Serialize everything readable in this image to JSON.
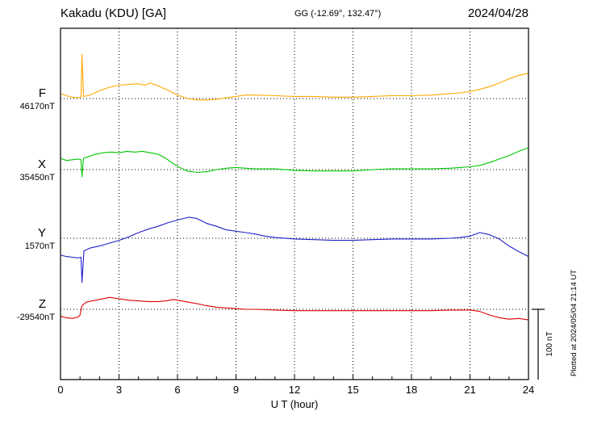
{
  "header": {
    "station": "Kakadu (KDU)  [GA]",
    "coords": "GG (-12.69°, 132.47°)",
    "date": "2024/04/28"
  },
  "footer": {
    "xlabel": "U T (hour)"
  },
  "side": {
    "scale_label": "100 nT",
    "plotted_at": "Plotted at 2024/05/04 21:14 UT"
  },
  "chart_data": {
    "type": "line",
    "title": "Kakadu (KDU) [GA] magnetogram 2024/04/28",
    "xlabel": "U T (hour)",
    "xlim": [
      0,
      24
    ],
    "xticks": [
      0,
      3,
      6,
      9,
      12,
      15,
      18,
      21,
      24
    ],
    "grid": "dotted horizontal baselines per component, dotted vertical lines every 3 hours",
    "scale_nT": 100,
    "series": [
      {
        "name": "F",
        "label": "F",
        "base_label": "46170nT",
        "baseline_nT": 46170,
        "color": "#FFA800",
        "x": [
          0,
          0.3,
          0.6,
          0.9,
          1.05,
          1.1,
          1.18,
          1.4,
          1.7,
          2,
          2.5,
          3,
          3.5,
          4,
          4.3,
          4.6,
          5,
          5.5,
          6,
          6.5,
          7,
          7.5,
          8,
          8.5,
          9,
          9.5,
          10,
          11,
          12,
          13,
          14,
          15,
          16,
          17,
          18,
          19,
          20,
          20.5,
          21,
          21.5,
          22,
          22.5,
          23,
          23.5,
          24
        ],
        "offsets_nT": [
          7,
          4,
          2,
          1,
          2,
          63,
          3,
          4,
          7,
          11,
          16,
          19,
          20,
          21,
          19,
          22,
          18,
          12,
          5,
          0,
          -2,
          -2,
          -1,
          1,
          3,
          5,
          5,
          4,
          3,
          3,
          2,
          2,
          3,
          4,
          4,
          5,
          7,
          8,
          10,
          13,
          17,
          22,
          28,
          33,
          36
        ]
      },
      {
        "name": "X",
        "label": "X",
        "base_label": "35450nT",
        "baseline_nT": 35450,
        "color": "#00C800",
        "x": [
          0,
          0.3,
          0.6,
          0.9,
          1.05,
          1.1,
          1.18,
          1.4,
          1.8,
          2.2,
          2.6,
          3,
          3.4,
          3.8,
          4.2,
          4.6,
          5,
          5.4,
          5.8,
          6.2,
          6.5,
          7,
          7.5,
          8,
          8.5,
          9,
          9.5,
          10,
          11,
          12,
          13,
          14,
          15,
          16,
          17,
          18,
          19,
          20,
          20.5,
          21,
          21.5,
          22,
          22.5,
          23,
          23.5,
          24
        ],
        "offsets_nT": [
          16,
          13,
          14,
          15,
          14,
          -10,
          16,
          18,
          22,
          24,
          25,
          24,
          26,
          25,
          26,
          24,
          22,
          16,
          8,
          2,
          -2,
          -4,
          -3,
          0,
          2,
          3,
          2,
          1,
          1,
          -1,
          -2,
          -2,
          -2,
          0,
          1,
          1,
          1,
          2,
          3,
          4,
          6,
          10,
          15,
          20,
          26,
          31
        ]
      },
      {
        "name": "Y",
        "label": "Y",
        "base_label": "1570nT",
        "baseline_nT": 1570,
        "color": "#2020C8",
        "x": [
          0,
          0.3,
          0.6,
          0.9,
          1.05,
          1.1,
          1.2,
          1.5,
          2,
          2.5,
          3,
          3.5,
          4,
          4.5,
          5,
          5.5,
          6,
          6.3,
          6.6,
          7,
          7.5,
          8,
          8.5,
          9,
          9.5,
          10,
          10.5,
          11,
          12,
          13,
          14,
          15,
          16,
          17,
          18,
          19,
          20,
          20.5,
          21,
          21.5,
          22,
          22.5,
          23,
          23.5,
          24
        ],
        "offsets_nT": [
          -24,
          -26,
          -27,
          -28,
          -27,
          -63,
          -18,
          -14,
          -11,
          -7,
          -3,
          2,
          8,
          13,
          17,
          22,
          26,
          28,
          30,
          28,
          21,
          17,
          12,
          10,
          8,
          6,
          3,
          1,
          -1,
          -2,
          -3,
          -3,
          -2,
          -1,
          -1,
          -1,
          0,
          1,
          3,
          8,
          5,
          -1,
          -11,
          -19,
          -26
        ]
      },
      {
        "name": "Z",
        "label": "Z",
        "base_label": "-29540nT",
        "baseline_nT": -29540,
        "color": "#E00000",
        "x": [
          0,
          0.3,
          0.6,
          0.9,
          1.0,
          1.1,
          1.3,
          1.6,
          2,
          2.5,
          3,
          3.5,
          4,
          4.5,
          5,
          5.4,
          5.8,
          6.2,
          6.6,
          7,
          7.5,
          8,
          8.5,
          9,
          9.5,
          10,
          11,
          12,
          13,
          14,
          15,
          16,
          17,
          18,
          19,
          20,
          20.5,
          21,
          21.5,
          22,
          22.5,
          23,
          23.5,
          24
        ],
        "offsets_nT": [
          -10,
          -12,
          -13,
          -11,
          -8,
          5,
          10,
          12,
          14,
          17,
          15,
          13,
          12,
          11,
          11,
          12,
          14,
          12,
          10,
          8,
          5,
          3,
          2,
          1,
          0,
          0,
          -1,
          -2,
          -2,
          -2,
          -2,
          -2,
          -2,
          -2,
          -2,
          -1,
          -1,
          -1,
          -3,
          -8,
          -12,
          -14,
          -13,
          -15
        ]
      }
    ]
  }
}
